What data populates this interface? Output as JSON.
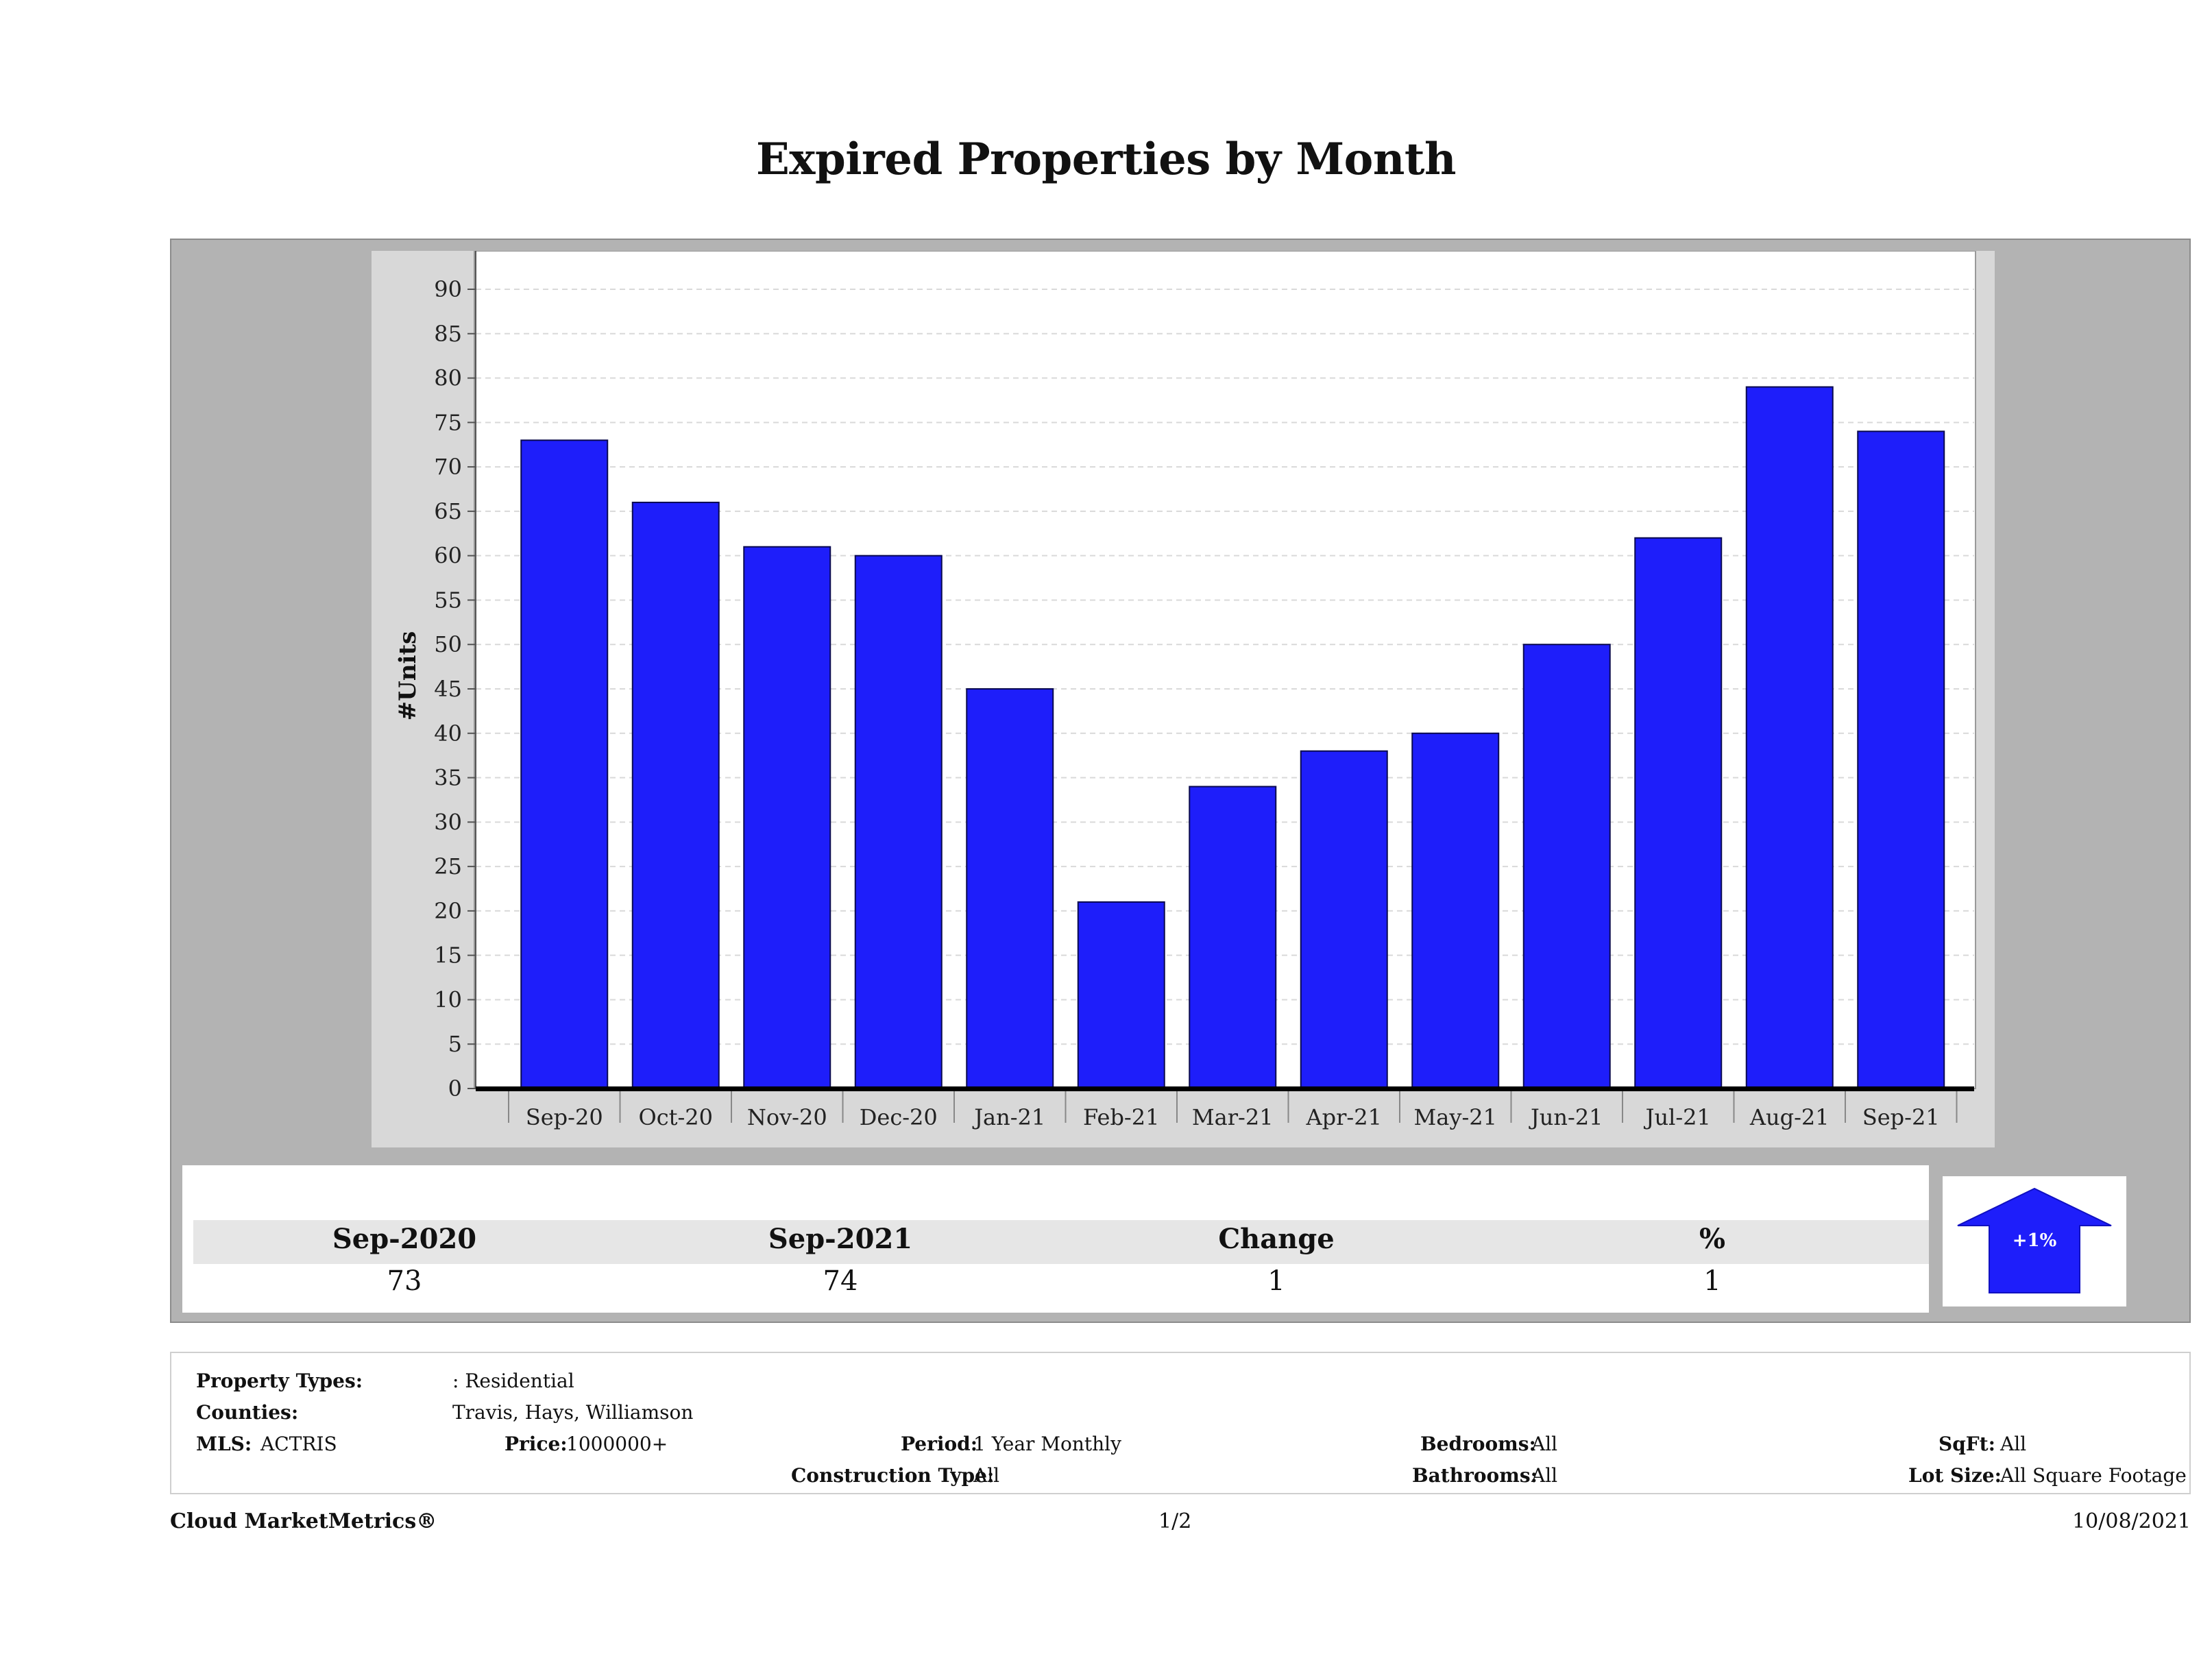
{
  "title": "Expired Properties by Month",
  "chart_data": {
    "type": "bar",
    "title": "Expired Properties by Month",
    "xlabel": "",
    "ylabel": "#Units",
    "categories": [
      "Sep-20",
      "Oct-20",
      "Nov-20",
      "Dec-20",
      "Jan-21",
      "Feb-21",
      "Mar-21",
      "Apr-21",
      "May-21",
      "Jun-21",
      "Jul-21",
      "Aug-21",
      "Sep-21"
    ],
    "values": [
      73,
      66,
      61,
      60,
      45,
      21,
      34,
      38,
      40,
      50,
      62,
      79,
      74
    ],
    "ylim": [
      0,
      90
    ],
    "yticks": [
      0,
      5,
      10,
      15,
      20,
      25,
      30,
      35,
      40,
      45,
      50,
      55,
      60,
      65,
      70,
      75,
      80,
      85,
      90
    ],
    "grid": true,
    "bar_color": "#1e1efa"
  },
  "summary": {
    "headers": [
      "Sep-2020",
      "Sep-2021",
      "Change",
      "%"
    ],
    "values": [
      "73",
      "74",
      "1",
      "1"
    ],
    "change_badge": "+1%",
    "badge_icon": "up-arrow-icon",
    "badge_color": "#1e1efa"
  },
  "filters": {
    "property_types_label": "Property Types:",
    "property_types_value": ": Residential",
    "counties_label": "Counties:",
    "counties_value": "Travis, Hays, Williamson",
    "mls_label": "MLS:",
    "mls_value": "ACTRIS",
    "price_label": "Price:",
    "price_value": "1000000+",
    "period_label": "Period:",
    "period_value": "1 Year Monthly",
    "construction_label": "Construction Type:",
    "construction_value": "All",
    "bedrooms_label": "Bedrooms:",
    "bedrooms_value": "All",
    "bathrooms_label": "Bathrooms:",
    "bathrooms_value": "All",
    "sqft_label": "SqFt:",
    "sqft_value": "All",
    "lotsize_label": "Lot Size:",
    "lotsize_value": "All Square Footage"
  },
  "footer": {
    "brand": "Cloud MarketMetrics®",
    "page": "1/2",
    "date": "10/08/2021"
  }
}
